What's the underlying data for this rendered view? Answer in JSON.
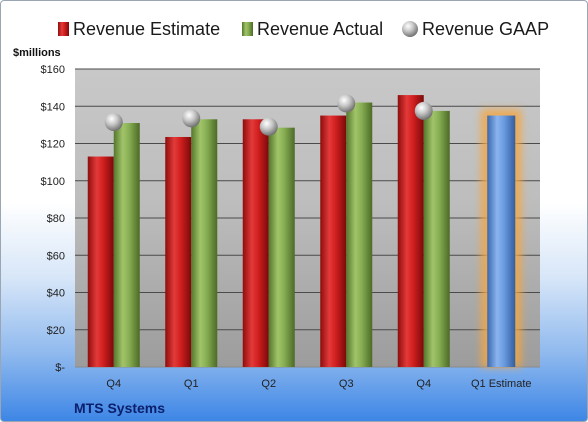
{
  "chart_data": {
    "type": "bar",
    "title": "",
    "company": "MTS Systems",
    "ylabel": "$millions",
    "ylim": [
      0,
      160
    ],
    "yticks": [
      0,
      20,
      40,
      60,
      80,
      100,
      120,
      140,
      160
    ],
    "ytick_labels": [
      "$-",
      "$20",
      "$40",
      "$60",
      "$80",
      "$100",
      "$120",
      "$140",
      "$160"
    ],
    "categories": [
      "Q4",
      "Q1",
      "Q2",
      "Q3",
      "Q4",
      "Q1 Estimate"
    ],
    "legend_position": "top",
    "grid": true,
    "series": [
      {
        "name": "Revenue Estimate",
        "color": "#d42020",
        "values": [
          113,
          123.5,
          133,
          135,
          146,
          null
        ]
      },
      {
        "name": "Revenue Actual",
        "color": "#7ea64a",
        "values": [
          131,
          133,
          128.5,
          142,
          137.5,
          null
        ]
      },
      {
        "name": "Revenue GAAP",
        "color": "#b4b4b4",
        "marker": "sphere",
        "values": [
          131.5,
          133.5,
          129,
          141.5,
          137.5,
          null
        ]
      }
    ],
    "forecast": {
      "category": "Q1 Estimate",
      "value": 135,
      "color": "#5b8fd8",
      "glow_color": "#f5a640"
    }
  }
}
